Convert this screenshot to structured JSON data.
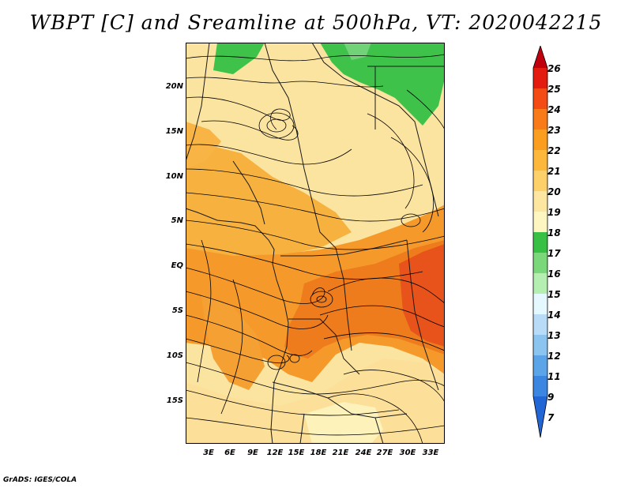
{
  "title": "WBPT [C] and Sreamline at 500hPa, VT: 2020042215",
  "credit": "GrADS: IGES/COLA",
  "map": {
    "lat_labels": [
      "20N",
      "15N",
      "10N",
      "5N",
      "EQ",
      "5S",
      "10S",
      "15S"
    ],
    "lon_labels": [
      "3E",
      "6E",
      "9E",
      "12E",
      "15E",
      "18E",
      "21E",
      "24E",
      "27E",
      "30E",
      "33E"
    ],
    "field": "wet-bulb potential temperature",
    "overlay": "streamlines"
  },
  "colorbar": {
    "labels": [
      "26",
      "25",
      "24",
      "23",
      "22",
      "21",
      "20",
      "19",
      "18",
      "17",
      "16",
      "15",
      "14",
      "13",
      "12",
      "11",
      "9",
      "7"
    ],
    "colors": {
      "c26": "#c0000d",
      "c25": "#e31c0f",
      "c24": "#f44a14",
      "c23": "#f97a18",
      "c22": "#fb9e20",
      "c21": "#fdb73a",
      "c20": "#fed06a",
      "c19": "#fde6a0",
      "c18": "#fef6c0",
      "c17": "#38c045",
      "c16": "#7ad87a",
      "c15": "#b4eeb0",
      "c14": "#e6f8ff",
      "c13": "#b8dcf8",
      "c12": "#8cc4f0",
      "c11": "#5ba4e8",
      "c9": "#3a86e0",
      "c7": "#2266d6"
    }
  }
}
